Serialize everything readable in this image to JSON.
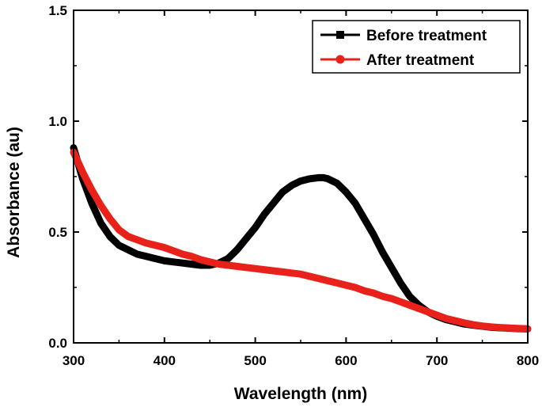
{
  "chart_data": {
    "type": "line",
    "xlabel": "Wavelength (nm)",
    "ylabel": "Absorbance (au)",
    "xlim": [
      300,
      800
    ],
    "ylim": [
      0.0,
      1.5
    ],
    "xticks": [
      300,
      400,
      500,
      600,
      700,
      800
    ],
    "yticks": [
      0.0,
      0.5,
      1.0,
      1.5
    ],
    "xtick_labels": [
      "300",
      "400",
      "500",
      "600",
      "700",
      "800"
    ],
    "ytick_labels": [
      "0.0",
      "0.5",
      "1.0",
      "1.5"
    ],
    "grid": false,
    "legend_position": "top-right",
    "series": [
      {
        "name": "Before treatment",
        "color": "#000000",
        "marker": "square",
        "x": [
          300,
          310,
          320,
          330,
          340,
          350,
          360,
          370,
          380,
          390,
          400,
          410,
          420,
          430,
          440,
          450,
          460,
          470,
          480,
          490,
          500,
          510,
          520,
          530,
          540,
          550,
          560,
          570,
          575,
          580,
          590,
          600,
          610,
          620,
          630,
          640,
          650,
          660,
          670,
          680,
          690,
          700,
          710,
          720,
          730,
          740,
          750,
          760,
          770,
          780,
          790,
          800
        ],
        "y": [
          0.88,
          0.74,
          0.63,
          0.54,
          0.48,
          0.44,
          0.42,
          0.4,
          0.39,
          0.38,
          0.37,
          0.365,
          0.36,
          0.355,
          0.35,
          0.35,
          0.36,
          0.38,
          0.42,
          0.47,
          0.52,
          0.58,
          0.63,
          0.68,
          0.71,
          0.73,
          0.74,
          0.745,
          0.745,
          0.74,
          0.72,
          0.68,
          0.63,
          0.56,
          0.49,
          0.41,
          0.34,
          0.27,
          0.21,
          0.17,
          0.14,
          0.12,
          0.105,
          0.095,
          0.085,
          0.08,
          0.075,
          0.07,
          0.068,
          0.066,
          0.064,
          0.063
        ]
      },
      {
        "name": "After treatment",
        "color": "#e8221b",
        "marker": "circle",
        "x": [
          300,
          310,
          320,
          330,
          340,
          350,
          360,
          370,
          380,
          390,
          400,
          410,
          420,
          430,
          440,
          450,
          460,
          470,
          480,
          490,
          500,
          510,
          520,
          530,
          540,
          550,
          560,
          570,
          580,
          590,
          600,
          610,
          620,
          630,
          640,
          650,
          660,
          670,
          680,
          690,
          700,
          710,
          720,
          730,
          740,
          750,
          760,
          770,
          780,
          790,
          800
        ],
        "y": [
          0.86,
          0.77,
          0.69,
          0.62,
          0.56,
          0.51,
          0.48,
          0.465,
          0.45,
          0.44,
          0.43,
          0.415,
          0.4,
          0.39,
          0.375,
          0.365,
          0.355,
          0.35,
          0.345,
          0.34,
          0.335,
          0.33,
          0.325,
          0.32,
          0.315,
          0.31,
          0.3,
          0.29,
          0.28,
          0.27,
          0.26,
          0.25,
          0.235,
          0.225,
          0.21,
          0.2,
          0.185,
          0.17,
          0.155,
          0.14,
          0.125,
          0.11,
          0.1,
          0.09,
          0.082,
          0.076,
          0.072,
          0.069,
          0.067,
          0.065,
          0.063
        ]
      }
    ]
  }
}
